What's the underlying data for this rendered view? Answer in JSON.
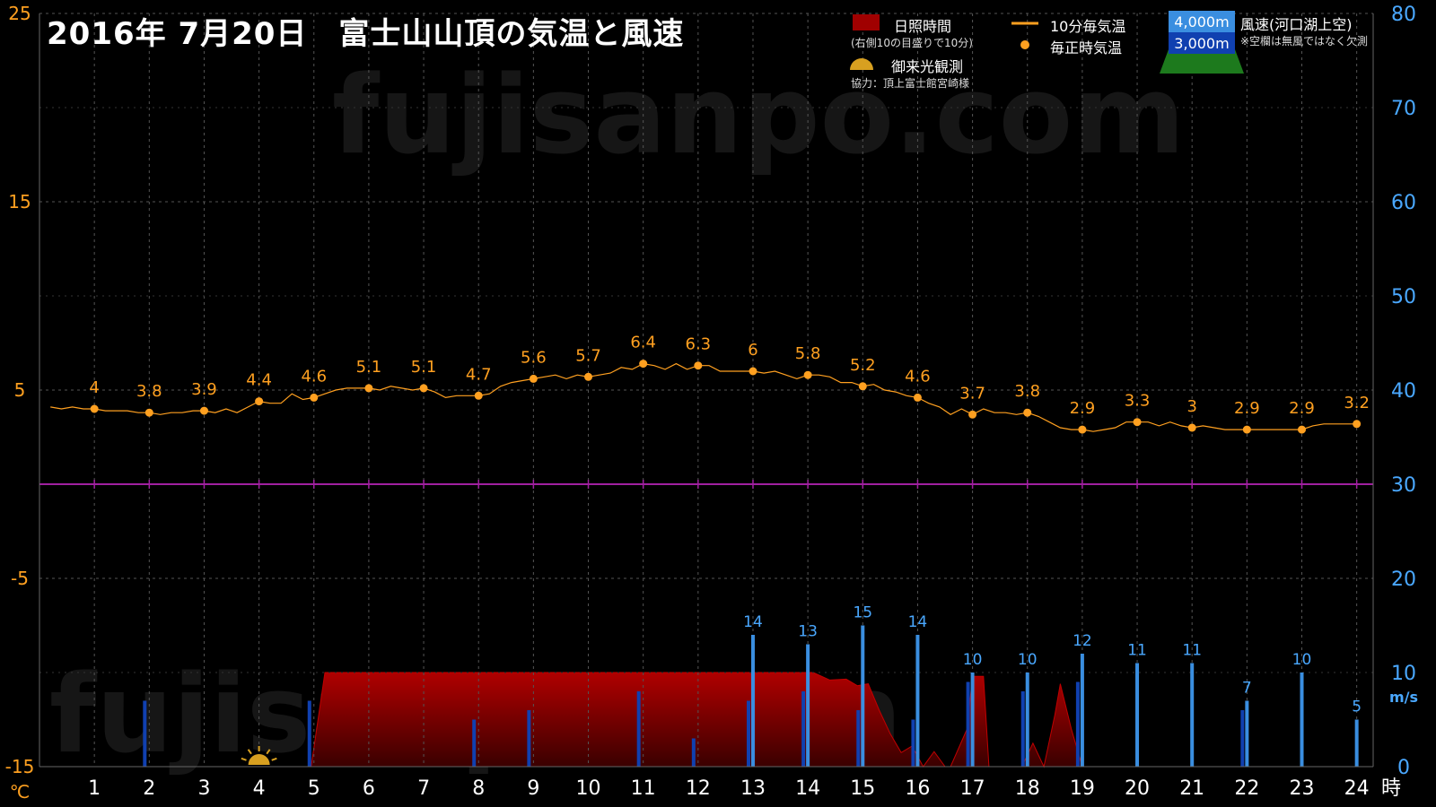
{
  "title": "2016年 7月20日　富士山山頂の気温と風速",
  "watermark": "fujisanpo.com",
  "legend": {
    "sunshine_label": "日照時間",
    "sunshine_note": "(右側10の目盛りで10分)",
    "temp10_label": "10分毎気温",
    "temp_hourly_label": "毎正時気温",
    "sunrise_label": "御来光観測",
    "credit": "協力：頂上富士館宮崎様",
    "wind_label": "風速(河口湖上空)",
    "wind_note": "※空欄は無風ではなく欠測",
    "wind4000": "4,000m",
    "wind3000": "3,000m"
  },
  "colors": {
    "temp": "#ffa020",
    "wind4000": "#3a8ee0",
    "wind3000": "#1040b0",
    "sunshine": "#a00000",
    "zero_line": "#a020a0",
    "left_axis": "#ffa020",
    "right_axis": "#4aa8ff"
  },
  "chart_data": {
    "type": "line",
    "x_ticks": [
      "1",
      "2",
      "3",
      "4",
      "5",
      "6",
      "7",
      "8",
      "9",
      "10",
      "11",
      "12",
      "13",
      "14",
      "15",
      "16",
      "17",
      "18",
      "19",
      "20",
      "21",
      "22",
      "23",
      "24"
    ],
    "x_unit": "時",
    "y_left": {
      "unit": "℃",
      "ticks": [
        "25",
        "15",
        "5",
        "-5",
        "-15"
      ],
      "range": [
        -15,
        25
      ]
    },
    "y_right": {
      "unit": "m/s",
      "ticks": [
        "80",
        "70",
        "60",
        "50",
        "40",
        "30",
        "20",
        "10",
        "0"
      ],
      "range": [
        0,
        80
      ]
    },
    "hourly_temp": {
      "x": [
        1,
        2,
        3,
        4,
        5,
        6,
        7,
        8,
        9,
        10,
        11,
        12,
        13,
        14,
        15,
        16,
        17,
        18,
        19,
        20,
        21,
        22,
        23,
        24
      ],
      "values": [
        4,
        3.8,
        3.9,
        4.4,
        4.6,
        5.1,
        5.1,
        4.7,
        5.6,
        5.7,
        6.4,
        6.3,
        6,
        5.8,
        5.2,
        4.6,
        3.7,
        3.8,
        2.9,
        3.3,
        3,
        2.9,
        2.9,
        3.2
      ],
      "labels": [
        "4",
        "3.8",
        "3.9",
        "4.4",
        "4.6",
        "5.1",
        "5.1",
        "4.7",
        "5.6",
        "5.7",
        "6.4",
        "6.3",
        "6",
        "5.8",
        "5.2",
        "4.6",
        "3.7",
        "3.8",
        "2.9",
        "3.3",
        "3",
        "2.9",
        "2.9",
        "3.2"
      ]
    },
    "temp_10min": [
      [
        0.2,
        4.1
      ],
      [
        0.4,
        4.0
      ],
      [
        0.6,
        4.1
      ],
      [
        0.8,
        4.0
      ],
      [
        1.0,
        4.0
      ],
      [
        1.2,
        3.9
      ],
      [
        1.4,
        3.9
      ],
      [
        1.6,
        3.9
      ],
      [
        1.8,
        3.8
      ],
      [
        2.0,
        3.8
      ],
      [
        2.2,
        3.7
      ],
      [
        2.4,
        3.8
      ],
      [
        2.6,
        3.8
      ],
      [
        2.8,
        3.9
      ],
      [
        3.0,
        3.9
      ],
      [
        3.2,
        3.8
      ],
      [
        3.4,
        4.0
      ],
      [
        3.6,
        3.8
      ],
      [
        3.8,
        4.1
      ],
      [
        4.0,
        4.4
      ],
      [
        4.2,
        4.3
      ],
      [
        4.4,
        4.3
      ],
      [
        4.6,
        4.8
      ],
      [
        4.8,
        4.5
      ],
      [
        5.0,
        4.6
      ],
      [
        5.2,
        4.8
      ],
      [
        5.4,
        5.0
      ],
      [
        5.6,
        5.1
      ],
      [
        5.8,
        5.1
      ],
      [
        6.0,
        5.1
      ],
      [
        6.2,
        5.0
      ],
      [
        6.4,
        5.2
      ],
      [
        6.6,
        5.1
      ],
      [
        6.8,
        5.0
      ],
      [
        7.0,
        5.1
      ],
      [
        7.2,
        4.9
      ],
      [
        7.4,
        4.6
      ],
      [
        7.6,
        4.7
      ],
      [
        7.8,
        4.7
      ],
      [
        8.0,
        4.7
      ],
      [
        8.2,
        4.8
      ],
      [
        8.4,
        5.2
      ],
      [
        8.6,
        5.4
      ],
      [
        8.8,
        5.5
      ],
      [
        9.0,
        5.6
      ],
      [
        9.2,
        5.7
      ],
      [
        9.4,
        5.8
      ],
      [
        9.6,
        5.6
      ],
      [
        9.8,
        5.8
      ],
      [
        10.0,
        5.7
      ],
      [
        10.2,
        5.8
      ],
      [
        10.4,
        5.9
      ],
      [
        10.6,
        6.2
      ],
      [
        10.8,
        6.1
      ],
      [
        11.0,
        6.4
      ],
      [
        11.2,
        6.3
      ],
      [
        11.4,
        6.1
      ],
      [
        11.6,
        6.4
      ],
      [
        11.8,
        6.1
      ],
      [
        12.0,
        6.3
      ],
      [
        12.2,
        6.3
      ],
      [
        12.4,
        6.0
      ],
      [
        12.6,
        6.0
      ],
      [
        12.8,
        6.0
      ],
      [
        13.0,
        6.0
      ],
      [
        13.2,
        5.9
      ],
      [
        13.4,
        6.0
      ],
      [
        13.6,
        5.8
      ],
      [
        13.8,
        5.6
      ],
      [
        14.0,
        5.8
      ],
      [
        14.2,
        5.8
      ],
      [
        14.4,
        5.7
      ],
      [
        14.6,
        5.4
      ],
      [
        14.8,
        5.4
      ],
      [
        15.0,
        5.2
      ],
      [
        15.2,
        5.3
      ],
      [
        15.4,
        5.0
      ],
      [
        15.6,
        4.9
      ],
      [
        15.8,
        4.7
      ],
      [
        16.0,
        4.6
      ],
      [
        16.2,
        4.3
      ],
      [
        16.4,
        4.1
      ],
      [
        16.6,
        3.7
      ],
      [
        16.8,
        4.0
      ],
      [
        17.0,
        3.7
      ],
      [
        17.2,
        4.0
      ],
      [
        17.4,
        3.8
      ],
      [
        17.6,
        3.8
      ],
      [
        17.8,
        3.7
      ],
      [
        18.0,
        3.8
      ],
      [
        18.2,
        3.6
      ],
      [
        18.4,
        3.3
      ],
      [
        18.6,
        3.0
      ],
      [
        18.8,
        2.9
      ],
      [
        19.0,
        2.9
      ],
      [
        19.2,
        2.8
      ],
      [
        19.4,
        2.9
      ],
      [
        19.6,
        3.0
      ],
      [
        19.8,
        3.3
      ],
      [
        20.0,
        3.3
      ],
      [
        20.2,
        3.3
      ],
      [
        20.4,
        3.1
      ],
      [
        20.6,
        3.3
      ],
      [
        20.8,
        3.1
      ],
      [
        21.0,
        3.0
      ],
      [
        21.2,
        3.1
      ],
      [
        21.4,
        3.0
      ],
      [
        21.6,
        2.9
      ],
      [
        21.8,
        2.9
      ],
      [
        22.0,
        2.9
      ],
      [
        22.2,
        2.9
      ],
      [
        22.4,
        2.9
      ],
      [
        22.6,
        2.9
      ],
      [
        22.8,
        2.9
      ],
      [
        23.0,
        2.9
      ],
      [
        23.2,
        3.1
      ],
      [
        23.4,
        3.2
      ],
      [
        23.6,
        3.2
      ],
      [
        23.8,
        3.2
      ],
      [
        24.0,
        3.2
      ]
    ],
    "wind_4000m": {
      "x": [
        13,
        14,
        15,
        16,
        17,
        18,
        19,
        20,
        21,
        22,
        23,
        24
      ],
      "values": [
        14,
        13,
        15,
        14,
        10,
        10,
        12,
        11,
        11,
        7,
        10,
        5
      ],
      "labels": [
        "14",
        "13",
        "15",
        "14",
        "10",
        "10",
        "12",
        "11",
        "11",
        "7",
        "10",
        "5"
      ]
    },
    "wind_3000m": {
      "x": [
        2,
        5,
        8,
        9,
        11,
        12,
        13,
        14,
        15,
        16,
        17,
        18,
        19,
        22
      ],
      "values": [
        7,
        7,
        5,
        6,
        8,
        3,
        7,
        8,
        6,
        5,
        9,
        8,
        9,
        6
      ]
    },
    "sunshine": [
      [
        4.95,
        0
      ],
      [
        5.2,
        10
      ],
      [
        9,
        10
      ],
      [
        13,
        10
      ],
      [
        14.1,
        10
      ],
      [
        14.4,
        9.2
      ],
      [
        14.7,
        9.3
      ],
      [
        14.9,
        8.6
      ],
      [
        15.1,
        8.8
      ],
      [
        15.3,
        6
      ],
      [
        15.5,
        3.5
      ],
      [
        15.7,
        1.5
      ],
      [
        15.9,
        2.2
      ],
      [
        16.1,
        0
      ],
      [
        16.3,
        1.6
      ],
      [
        16.5,
        0
      ],
      [
        16.6,
        0
      ],
      [
        16.9,
        4
      ],
      [
        17.0,
        9.6
      ],
      [
        17.2,
        9.6
      ],
      [
        17.3,
        0
      ],
      [
        17.7,
        0
      ],
      [
        17.9,
        0
      ],
      [
        18.1,
        2.5
      ],
      [
        18.3,
        0
      ],
      [
        18.5,
        5.5
      ],
      [
        18.6,
        8.8
      ],
      [
        18.8,
        4
      ],
      [
        19.0,
        0
      ]
    ],
    "sunrise_hour": 4.0,
    "grid": true
  }
}
